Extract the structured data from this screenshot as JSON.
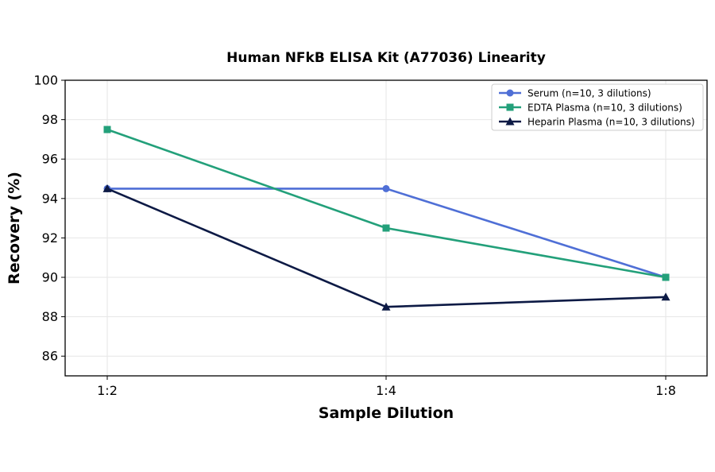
{
  "chart_data": {
    "type": "line",
    "title": "Human NFkB ELISA Kit (A77036) Linearity",
    "xlabel": "Sample Dilution",
    "ylabel": "Recovery (%)",
    "categories": [
      "1:2",
      "1:4",
      "1:8"
    ],
    "ylim": [
      85,
      100
    ],
    "yticks": [
      86,
      88,
      90,
      92,
      94,
      96,
      98,
      100
    ],
    "grid": true,
    "legend_position": "top-right",
    "series": [
      {
        "name": "Serum (n=10, 3 dilutions)",
        "values": [
          94.5,
          94.5,
          90.0
        ],
        "color": "#4f6fd6",
        "marker": "circle"
      },
      {
        "name": "EDTA Plasma (n=10, 3 dilutions)",
        "values": [
          97.5,
          92.5,
          90.0
        ],
        "color": "#23a07a",
        "marker": "square"
      },
      {
        "name": "Heparin Plasma (n=10, 3 dilutions)",
        "values": [
          94.5,
          88.5,
          89.0
        ],
        "color": "#0d1a45",
        "marker": "triangle"
      }
    ]
  }
}
